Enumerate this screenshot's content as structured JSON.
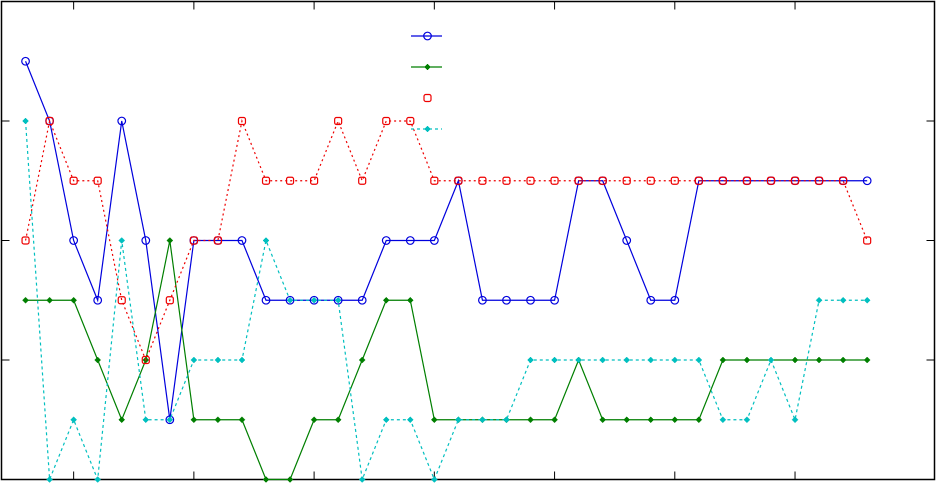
{
  "chart_data": {
    "type": "line",
    "title": "",
    "xlabel": "",
    "ylabel": "",
    "xlim": [
      0,
      38.8
    ],
    "ylim": [
      0,
      8
    ],
    "x_ticks": [
      3,
      8,
      13,
      18,
      23,
      28,
      33
    ],
    "y_ticks": [
      2,
      4,
      6
    ],
    "grid": false,
    "legend": {
      "placement": "top-center"
    },
    "x": [
      1,
      2,
      3,
      4,
      5,
      6,
      7,
      8,
      9,
      10,
      11,
      12,
      13,
      14,
      15,
      16,
      17,
      18,
      19,
      20,
      21,
      22,
      23,
      24,
      25,
      26,
      27,
      28,
      29,
      30,
      31,
      32,
      33,
      34,
      35,
      36
    ],
    "series": [
      {
        "color": "#0000dd",
        "line": "solid",
        "marker": "circle",
        "values": [
          7,
          6,
          4,
          3,
          6,
          4,
          1,
          4,
          4,
          4,
          3,
          3,
          3,
          3,
          3,
          4,
          4,
          4,
          5,
          3,
          3,
          3,
          3,
          5,
          5,
          4,
          3,
          3,
          5,
          5,
          5,
          5,
          5,
          5,
          5,
          5
        ]
      },
      {
        "color": "#007f00",
        "line": "solid",
        "marker": "diamond",
        "values": [
          3,
          3,
          3,
          2,
          1,
          2,
          4,
          1,
          1,
          1,
          0,
          0,
          1,
          1,
          2,
          3,
          3,
          1,
          1,
          1,
          1,
          1,
          1,
          2,
          1,
          1,
          1,
          1,
          1,
          2,
          2,
          2,
          2,
          2,
          2,
          2
        ]
      },
      {
        "color": "#ee0000",
        "line": "dotted",
        "marker": "square",
        "values": [
          4,
          6,
          5,
          5,
          3,
          2,
          3,
          4,
          4,
          6,
          5,
          5,
          5,
          6,
          5,
          6,
          6,
          5,
          5,
          5,
          5,
          5,
          5,
          5,
          5,
          5,
          5,
          5,
          5,
          5,
          5,
          5,
          5,
          5,
          5,
          4
        ]
      },
      {
        "color": "#00bfbf",
        "line": "dashed",
        "marker": "diamond",
        "values": [
          6,
          0,
          1,
          0,
          4,
          1,
          1,
          2,
          2,
          2,
          4,
          3,
          3,
          3,
          0,
          1,
          1,
          0,
          1,
          1,
          1,
          2,
          2,
          2,
          2,
          2,
          2,
          2,
          2,
          1,
          1,
          2,
          1,
          3,
          3,
          3
        ]
      }
    ]
  }
}
